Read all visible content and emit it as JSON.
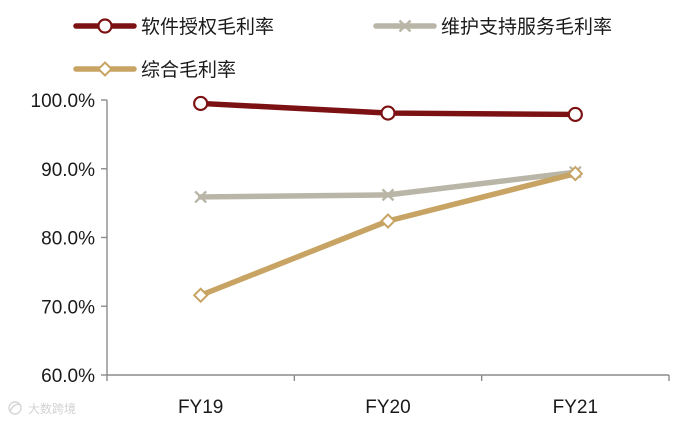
{
  "chart_data": {
    "type": "line",
    "title": "",
    "xlabel": "",
    "ylabel": "",
    "categories": [
      "FY19",
      "FY20",
      "FY21"
    ],
    "ylim": [
      60,
      100
    ],
    "yticks": [
      60,
      70,
      80,
      90,
      100
    ],
    "ytick_labels": [
      "60.0%",
      "70.0%",
      "80.0%",
      "90.0%",
      "100.0%"
    ],
    "grid": false,
    "legend_position": "top",
    "series": [
      {
        "name": "软件授权毛利率",
        "values": [
          99.5,
          98.1,
          97.9
        ],
        "color": "#7b1113",
        "marker": "circle"
      },
      {
        "name": "维护支持服务毛利率",
        "values": [
          85.9,
          86.2,
          89.5
        ],
        "color": "#b9b6a7",
        "marker": "x"
      },
      {
        "name": "综合毛利率",
        "values": [
          71.6,
          82.4,
          89.3
        ],
        "color": "#c8a464",
        "marker": "diamond"
      }
    ]
  },
  "watermark": {
    "text": "大数跨境",
    "icon": "watermark-logo-icon"
  }
}
